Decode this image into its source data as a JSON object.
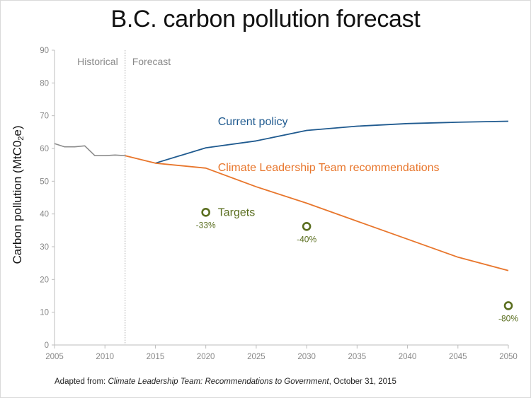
{
  "title": "B.C. carbon pollution forecast",
  "caption": {
    "prefix": "Adapted from: ",
    "source": "Climate Leadership Team: Recommendations to Government",
    "suffix": ", October 31, 2015"
  },
  "chart_data": {
    "type": "line",
    "title": "B.C. carbon pollution forecast",
    "ylabel_main": "Carbon pollution (MtC0",
    "ylabel_sub": "2",
    "ylabel_tail": "e)",
    "xlim": [
      2005,
      2050
    ],
    "ylim": [
      0,
      90
    ],
    "xticks": [
      2005,
      2010,
      2015,
      2020,
      2025,
      2030,
      2035,
      2040,
      2045,
      2050
    ],
    "yticks": [
      0,
      10,
      20,
      30,
      40,
      50,
      60,
      70,
      80,
      90
    ],
    "period_divider_x": 2012,
    "periods": [
      "Historical",
      "Forecast"
    ],
    "colors": {
      "historical": "#8c8c8c",
      "current": "#1f5a8f",
      "clt": "#e8762c",
      "targets": "#5a6e1f",
      "axis": "#bdbdbd"
    },
    "series": [
      {
        "key": "historical",
        "x": [
          2005,
          2006,
          2007,
          2008,
          2009,
          2010,
          2011,
          2012
        ],
        "y": [
          61.5,
          60.5,
          60.5,
          60.8,
          57.8,
          57.8,
          58.0,
          57.8
        ]
      },
      {
        "key": "current",
        "name": "Current policy",
        "x": [
          2015,
          2020,
          2025,
          2030,
          2035,
          2040,
          2045,
          2050
        ],
        "y": [
          55.5,
          60.2,
          62.3,
          65.5,
          66.8,
          67.6,
          68.0,
          68.3
        ]
      },
      {
        "key": "clt",
        "name": "Climate Leadership Team recommendations",
        "x": [
          2012,
          2015,
          2020,
          2025,
          2030,
          2035,
          2040,
          2045,
          2050
        ],
        "y": [
          57.8,
          55.5,
          54.0,
          48.3,
          43.3,
          37.8,
          32.3,
          26.8,
          22.7
        ]
      }
    ],
    "targets": {
      "name": "Targets",
      "points": [
        {
          "x": 2020,
          "y": 40.5,
          "label": "-33%"
        },
        {
          "x": 2030,
          "y": 36.2,
          "label": "-40%"
        },
        {
          "x": 2050,
          "y": 12.0,
          "label": "-80%"
        }
      ]
    },
    "series_labels": [
      {
        "key": "current",
        "text": "Current policy",
        "at_x": 2021.2,
        "at_y": 68.0
      },
      {
        "key": "clt",
        "text": "Climate Leadership Team recommendations",
        "at_x": 2021.2,
        "at_y": 54.0
      },
      {
        "key": "targets",
        "text": "Targets",
        "at_x": 2021.2,
        "at_y": 40.2
      }
    ]
  }
}
